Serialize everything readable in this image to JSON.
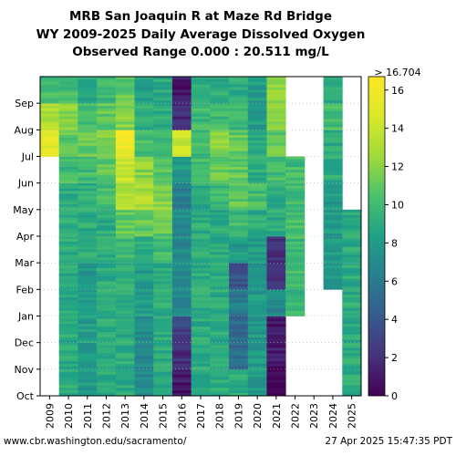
{
  "chart_data": {
    "type": "heatmap",
    "title": "MRB San Joaquin R at Maze Rd Bridge",
    "subtitle_1": "WY 2009-2025 Daily Average Dissolved Oxygen",
    "subtitle_2": "Observed Range 0.000 : 20.511 mg/L",
    "x_categories": [
      "2009",
      "2010",
      "2011",
      "2012",
      "2013",
      "2014",
      "2015",
      "2016",
      "2017",
      "2018",
      "2019",
      "2020",
      "2021",
      "2022",
      "2023",
      "2024",
      "2025"
    ],
    "y_months": [
      "Oct",
      "Nov",
      "Dec",
      "Jan",
      "Feb",
      "Mar",
      "Apr",
      "May",
      "Jun",
      "Jul",
      "Aug",
      "Sep"
    ],
    "colorbar": {
      "range": [
        0,
        16.704
      ],
      "ticks": [
        0,
        2,
        4,
        6,
        8,
        10,
        12,
        14,
        16
      ],
      "top_label": "> 16.704",
      "colormap": "viridis"
    },
    "median_by_year_and_month": {
      "2009": [
        null,
        null,
        null,
        null,
        null,
        null,
        null,
        null,
        null,
        15,
        13,
        10
      ],
      "2010": [
        9,
        9,
        9,
        9,
        9,
        9,
        9,
        9,
        10,
        11,
        12,
        10
      ],
      "2011": [
        8,
        8,
        8,
        8,
        8,
        9,
        9,
        9,
        10,
        11,
        10,
        9
      ],
      "2012": [
        9,
        9,
        9,
        9,
        9,
        9,
        9,
        10,
        11,
        12,
        11,
        10
      ],
      "2013": [
        9,
        9,
        9,
        9,
        9,
        10,
        11,
        13,
        14,
        16,
        12,
        11
      ],
      "2014": [
        7,
        7,
        7,
        8,
        8,
        9,
        11,
        13,
        12,
        10,
        9,
        8
      ],
      "2015": [
        9,
        9,
        9,
        9,
        9,
        10,
        11,
        12,
        11,
        10,
        9,
        9
      ],
      "2016": [
        1,
        2,
        3,
        7,
        7,
        7,
        7,
        6,
        8,
        14,
        2,
        1
      ],
      "2017": [
        9,
        9,
        9,
        9,
        9,
        9,
        9,
        9,
        10,
        10,
        10,
        9
      ],
      "2018": [
        9,
        9,
        9,
        9,
        9,
        9,
        9,
        10,
        11,
        12,
        10,
        9
      ],
      "2019": [
        9,
        5,
        5,
        6,
        4,
        8,
        10,
        11,
        11,
        11,
        10,
        9
      ],
      "2020": [
        8,
        8,
        8,
        8,
        8,
        8,
        9,
        10,
        9,
        9,
        8,
        8
      ],
      "2021": [
        0,
        1,
        1,
        7,
        2,
        2,
        9,
        9,
        10,
        11,
        12,
        12
      ],
      "2022": [
        null,
        null,
        null,
        10,
        10,
        10,
        10,
        10,
        10,
        null,
        null,
        null
      ],
      "2023": [
        null,
        null,
        null,
        null,
        null,
        null,
        null,
        null,
        null,
        null,
        null,
        null
      ],
      "2024": [
        null,
        null,
        null,
        null,
        8,
        8,
        8,
        8,
        9,
        9,
        10,
        9
      ],
      "2025": [
        9,
        9,
        9,
        9,
        9,
        9,
        9,
        null,
        null,
        null,
        null,
        null
      ]
    }
  },
  "footer": {
    "source": "www.cbr.washington.edu/sacramento/",
    "timestamp": "27 Apr 2025 15:47:35 PDT"
  }
}
